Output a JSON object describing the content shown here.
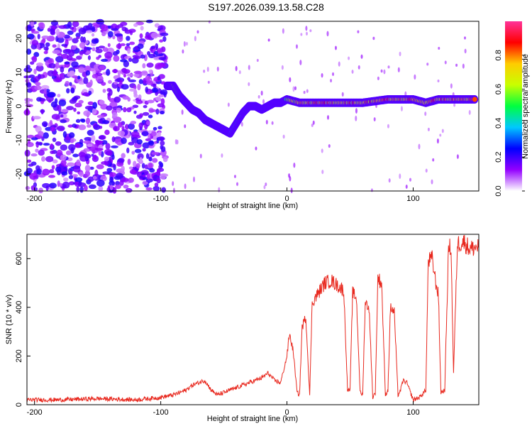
{
  "title": "S197.2026.039.13.58.C28",
  "chart_data": [
    {
      "type": "heatmap",
      "title": "S197.2026.039.13.58.C28",
      "xlabel": "Height of straight line (km)",
      "ylabel": "Frequency (Hz)",
      "xlim": [
        -206,
        152
      ],
      "ylim": [
        -25,
        25
      ],
      "xticks": [
        -200,
        -100,
        0,
        100
      ],
      "yticks": [
        -20,
        -10,
        0,
        10,
        20
      ],
      "colorbar": {
        "label": "Normalized spectral amplitude",
        "range": [
          0,
          1
        ],
        "ticks": [
          0.0,
          0.2,
          0.4,
          0.6,
          0.8
        ],
        "colormap": [
          "#ffffff",
          "#9400ff",
          "#0000ff",
          "#00c8ff",
          "#00ff40",
          "#c8ff00",
          "#ffcc00",
          "#ff0000",
          "#ff3399"
        ]
      },
      "ridge": {
        "x": [
          -95,
          -90,
          -85,
          -80,
          -75,
          -70,
          -65,
          -60,
          -55,
          -50,
          -45,
          -40,
          -35,
          -30,
          -25,
          -20,
          -15,
          -10,
          -5,
          0,
          10,
          20,
          30,
          40,
          50,
          60,
          70,
          80,
          90,
          100,
          110,
          120,
          130,
          140,
          150
        ],
        "frequency": [
          6,
          6,
          3,
          1,
          -1,
          -2,
          -4,
          -5,
          -6,
          -7,
          -8,
          -5,
          -2,
          0,
          0,
          -1,
          0,
          1,
          1,
          2,
          1,
          1,
          1,
          1,
          1,
          1,
          1.5,
          2,
          2,
          2,
          1,
          2,
          2,
          2,
          2
        ],
        "amplitude": [
          0.6,
          0.7,
          0.5,
          0.4,
          0.35,
          0.35,
          0.3,
          0.3,
          0.3,
          0.3,
          0.4,
          0.45,
          0.5,
          0.55,
          0.55,
          0.5,
          0.6,
          0.7,
          0.7,
          0.6,
          0.8,
          0.8,
          0.85,
          0.8,
          0.85,
          0.8,
          0.85,
          0.85,
          0.8,
          0.85,
          0.8,
          0.85,
          0.8,
          0.85,
          0.8
        ]
      }
    },
    {
      "type": "line",
      "xlabel": "Height of straight line (km)",
      "ylabel": "SNR (10 * v/v)",
      "xlim": [
        -206,
        152
      ],
      "ylim": [
        0,
        700
      ],
      "xticks": [
        -200,
        -100,
        0,
        100
      ],
      "yticks": [
        0,
        200,
        400,
        600
      ],
      "color": "#e8281e",
      "series": [
        {
          "name": "SNR",
          "x": [
            -206,
            -180,
            -150,
            -120,
            -100,
            -90,
            -80,
            -75,
            -70,
            -65,
            -60,
            -55,
            -50,
            -45,
            -40,
            -35,
            -30,
            -25,
            -20,
            -15,
            -10,
            -5,
            0,
            2,
            5,
            8,
            10,
            12,
            15,
            18,
            20,
            25,
            30,
            35,
            40,
            45,
            48,
            50,
            52,
            55,
            58,
            60,
            62,
            65,
            68,
            70,
            72,
            75,
            78,
            80,
            82,
            85,
            88,
            90,
            92,
            95,
            100,
            105,
            110,
            112,
            115,
            118,
            120,
            122,
            125,
            128,
            130,
            132,
            135,
            140,
            145,
            152
          ],
          "y": [
            20,
            20,
            25,
            20,
            30,
            40,
            60,
            80,
            90,
            100,
            60,
            40,
            50,
            60,
            70,
            80,
            90,
            100,
            110,
            130,
            100,
            90,
            200,
            290,
            220,
            50,
            40,
            320,
            360,
            40,
            420,
            460,
            500,
            510,
            490,
            470,
            60,
            60,
            460,
            440,
            50,
            40,
            420,
            400,
            30,
            50,
            520,
            500,
            40,
            60,
            400,
            380,
            40,
            60,
            100,
            90,
            20,
            30,
            60,
            590,
            600,
            500,
            450,
            50,
            60,
            640,
            650,
            130,
            660,
            670,
            640,
            650
          ]
        }
      ]
    }
  ]
}
